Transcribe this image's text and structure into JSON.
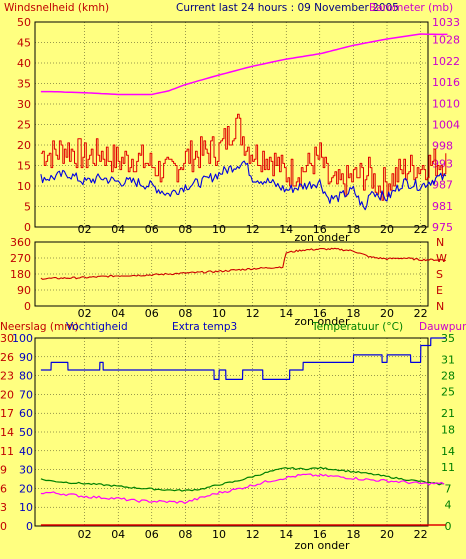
{
  "header": {
    "wind_label": "Windsnelheid (kmh)",
    "center_title": "Current last 24 hours : 09 November 2005",
    "baro_label": "Barometer (mb)"
  },
  "direction_labels": [
    "N",
    "W",
    "S",
    "E",
    "N"
  ],
  "bottom_header": {
    "rain_label": "Neerslag (mm)",
    "hum_label": "Vochtigheid",
    "extra_label": "Extra temp3",
    "temp_label": "Temperatuur (°C)",
    "dew_label": "Dauwpunt"
  },
  "colors": {
    "background": "#ffff80",
    "wind_gust": "#e00000",
    "wind_avg": "#0000e0",
    "barometer": "#ff00ff",
    "direction": "#cc0000",
    "humidity": "#0000e0",
    "temperature": "#008000",
    "dewpoint": "#ff00ff",
    "rain": "#e00000",
    "left_axis_text": "#c00000",
    "right_axis_text": "#cc00cc",
    "temp_axis_text": "#008000"
  },
  "chart_data": [
    {
      "type": "line",
      "title": "Current last 24 hours : 09 November 2005",
      "x_ticks": [
        "02",
        "04",
        "06",
        "08",
        "10",
        "12",
        "14",
        "16",
        "18",
        "20",
        "22"
      ],
      "x_note": "zon onder",
      "ylabel": "Windsnelheid (kmh)",
      "ylim": [
        0,
        50
      ],
      "yticks": [
        0,
        5,
        10,
        15,
        20,
        25,
        30,
        35,
        40,
        45,
        50
      ],
      "y2label": "Barometer (mb)",
      "y2lim": [
        975,
        1033
      ],
      "y2ticks": [
        975,
        981,
        987,
        993,
        998,
        1004,
        1010,
        1016,
        1022,
        1028,
        1033
      ],
      "grid": true,
      "series": [
        {
          "role": "wind_gust",
          "x": [
            0,
            1,
            2,
            3,
            4,
            5,
            6,
            7,
            8,
            9,
            10,
            10.5,
            11,
            11.5,
            12,
            13,
            14,
            15,
            16,
            16.5,
            17,
            18,
            19,
            19.5,
            20,
            21,
            22,
            23
          ],
          "values": [
            18,
            19,
            17,
            18,
            16,
            17,
            15,
            13,
            17,
            18,
            19,
            22,
            26,
            21,
            18,
            17,
            13,
            14,
            17,
            11,
            10,
            12,
            13,
            10,
            11,
            14,
            15,
            16
          ]
        },
        {
          "role": "wind_avg",
          "x": [
            0,
            1,
            2,
            3,
            4,
            5,
            6,
            7,
            8,
            9,
            10,
            11,
            11.5,
            12,
            13,
            14,
            15,
            16,
            16.5,
            17,
            18,
            18.7,
            19,
            20,
            21,
            22,
            23
          ],
          "values": [
            12,
            13,
            11,
            12,
            11,
            11,
            10,
            8,
            10,
            11,
            13,
            15,
            16,
            12,
            11,
            9,
            10,
            11,
            7,
            7,
            9,
            4,
            9,
            7,
            11,
            10,
            12
          ]
        },
        {
          "role": "barometer",
          "x": [
            0,
            2,
            4,
            6,
            7,
            8,
            10,
            12,
            14,
            16,
            18,
            20,
            22,
            23
          ],
          "values": [
            1013.3,
            1013,
            1012.5,
            1012.5,
            1013.5,
            1015.3,
            1018,
            1020.5,
            1022.5,
            1024,
            1026.4,
            1028.2,
            1029.6,
            1029.5
          ]
        }
      ]
    },
    {
      "type": "line",
      "x_ticks": [
        "02",
        "04",
        "06",
        "08",
        "10",
        "12",
        "14",
        "16",
        "18",
        "20",
        "22"
      ],
      "x_note": "zon onder",
      "ylim": [
        0,
        360
      ],
      "yticks": [
        0,
        90,
        180,
        270,
        360
      ],
      "y2ticks": [
        "N",
        "W",
        "S",
        "E",
        "N"
      ],
      "grid": true,
      "series": [
        {
          "role": "wind_direction",
          "x": [
            0,
            2,
            4,
            6,
            8,
            10,
            12,
            13,
            13.8,
            14,
            15,
            16,
            17,
            18,
            19,
            20,
            21,
            22,
            23
          ],
          "values": [
            155,
            160,
            170,
            175,
            185,
            195,
            210,
            215,
            220,
            300,
            315,
            320,
            320,
            310,
            275,
            265,
            270,
            260,
            260
          ]
        }
      ]
    },
    {
      "type": "line",
      "x_ticks": [
        "02",
        "04",
        "06",
        "08",
        "10",
        "12",
        "14",
        "16",
        "18",
        "20",
        "22"
      ],
      "x_note": "zon onder",
      "ylabel": "Neerslag (mm)",
      "ylim": [
        0,
        30
      ],
      "yticks": [
        0,
        3,
        6,
        9,
        11,
        14,
        17,
        20,
        23,
        26,
        30
      ],
      "y_hum_ticks": [
        0,
        10,
        20,
        30,
        40,
        50,
        60,
        70,
        80,
        90,
        100
      ],
      "y2label": "Temperatuur (°C)",
      "y2lim": [
        0,
        35
      ],
      "y2ticks": [
        0,
        4,
        7,
        11,
        14,
        18,
        21,
        25,
        28,
        31,
        35
      ],
      "grid": true,
      "series": [
        {
          "role": "humidity",
          "x": [
            -0.6,
            0,
            0.01,
            1,
            1.01,
            2.9,
            2.91,
            3.1,
            3.11,
            9.7,
            9.71,
            10,
            10.01,
            10.4,
            10.41,
            11.4,
            11.41,
            12.6,
            12.61,
            14.2,
            14.21,
            15,
            15.01,
            18,
            18.01,
            19.7,
            19.71,
            20,
            20.01,
            21.4,
            21.41,
            22,
            22.01,
            22.6,
            22.61,
            23.5
          ],
          "values": [
            83,
            83,
            87,
            87,
            83,
            83,
            87,
            87,
            83,
            83,
            78,
            78,
            83,
            83,
            78,
            78,
            83,
            83,
            78,
            78,
            83,
            83,
            87,
            87,
            91,
            91,
            87,
            87,
            91,
            91,
            87,
            87,
            96,
            96,
            100,
            100
          ]
        },
        {
          "role": "temperature",
          "x": [
            -0.6,
            0,
            1,
            2,
            3,
            4,
            5,
            6,
            7,
            8,
            9,
            10,
            11,
            12,
            13,
            14,
            15,
            16,
            17,
            18,
            19,
            20,
            21,
            22,
            23,
            23.5
          ],
          "values": [
            8.7,
            8.4,
            8.1,
            7.9,
            7.7,
            7.4,
            7.1,
            6.9,
            6.7,
            6.6,
            6.9,
            7.7,
            8.3,
            9.2,
            10.1,
            10.8,
            10.6,
            10.8,
            10.5,
            10.1,
            9.7,
            9.2,
            8.7,
            8.3,
            7.8,
            7.8
          ]
        },
        {
          "role": "dewpoint",
          "x": [
            -0.6,
            0,
            1,
            2,
            3,
            4,
            5,
            6,
            7,
            8,
            9,
            10,
            11,
            12,
            13,
            14,
            15,
            16,
            17,
            18,
            19,
            20,
            21,
            22,
            23,
            23.5
          ],
          "values": [
            6.2,
            6.2,
            5.9,
            5.5,
            5.3,
            5.1,
            4.7,
            4.6,
            4.5,
            4.4,
            5.3,
            6.2,
            6.8,
            7.6,
            8.4,
            9.0,
            9.5,
            9.4,
            9.2,
            8.9,
            8.6,
            8.4,
            8.2,
            7.9,
            7.9,
            7.9
          ]
        },
        {
          "role": "rain",
          "x": [
            -0.6,
            23.5
          ],
          "values": [
            0,
            0
          ]
        }
      ]
    }
  ]
}
